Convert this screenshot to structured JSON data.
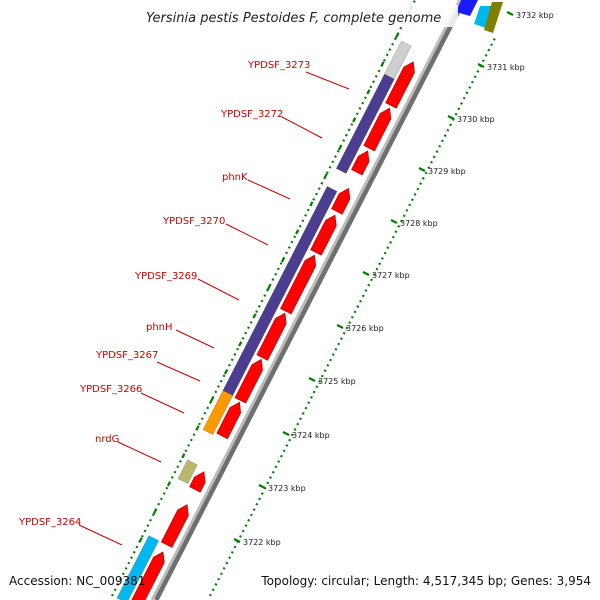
{
  "title": "Yersinia pestis Pestoides F, complete genome",
  "footer": {
    "accession": "Accession: NC_009381",
    "topology": "Topology: circular; Length: 4,517,345 bp; Genes: 3,954"
  },
  "colors": {
    "cds_forward": "#ff0000",
    "cds_reverse": "#ff0000",
    "gene_purple": "#4b3d8f",
    "gene_orange": "#ff9900",
    "gene_khaki": "#bdb76b",
    "gene_cyan": "#00b7f0",
    "gene_blue": "#1a1aff",
    "gene_olive": "#808000",
    "backbone": "#999999",
    "tick": "#008000",
    "label": "#cc0000"
  },
  "kbp_labels": [
    {
      "text": "3732 kbp",
      "kbp": 3732
    },
    {
      "text": "3731 kbp",
      "kbp": 3731
    },
    {
      "text": "3730 kbp",
      "kbp": 3730
    },
    {
      "text": "3729 kbp",
      "kbp": 3729
    },
    {
      "text": "3728 kbp",
      "kbp": 3728
    },
    {
      "text": "3727 kbp",
      "kbp": 3727
    },
    {
      "text": "3726 kbp",
      "kbp": 3726
    },
    {
      "text": "3725 kbp",
      "kbp": 3725
    },
    {
      "text": "3724 kbp",
      "kbp": 3724
    },
    {
      "text": "3723 kbp",
      "kbp": 3723
    },
    {
      "text": "3722 kbp",
      "kbp": 3722
    }
  ],
  "gene_labels": [
    "YPDSF_3273",
    "YPDSF_3272",
    "phnK",
    "YPDSF_3270",
    "YPDSF_3269",
    "phnH",
    "YPDSF_3267",
    "YPDSF_3266",
    "nrdG",
    "YPDSF_3264"
  ]
}
